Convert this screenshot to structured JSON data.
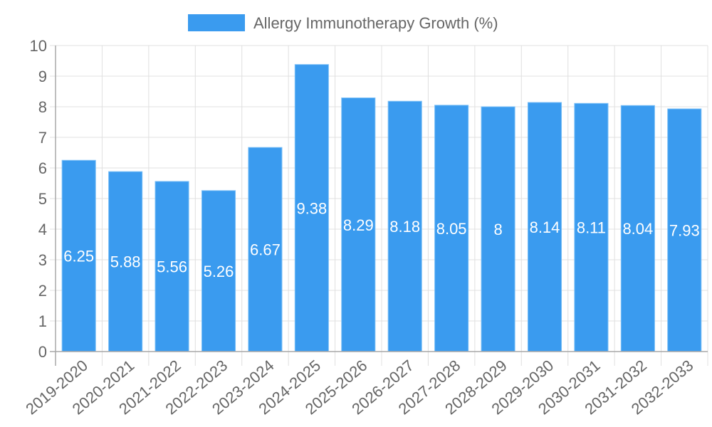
{
  "chart_data": {
    "type": "bar",
    "title": "",
    "xlabel": "",
    "ylabel": "",
    "ylim": [
      0,
      10
    ],
    "yticks": [
      0,
      1,
      2,
      3,
      4,
      5,
      6,
      7,
      8,
      9,
      10
    ],
    "grid": true,
    "legend_position": "top",
    "categories": [
      "2019-2020",
      "2020-2021",
      "2021-2022",
      "2022-2023",
      "2023-2024",
      "2024-2025",
      "2025-2026",
      "2026-2027",
      "2027-2028",
      "2028-2029",
      "2029-2030",
      "2030-2031",
      "2031-2032",
      "2032-2033"
    ],
    "series": [
      {
        "name": "Allergy Immunotherapy Growth (%)",
        "color": "#3a9bef",
        "values": [
          6.25,
          5.88,
          5.56,
          5.26,
          6.67,
          9.38,
          8.29,
          8.18,
          8.05,
          8,
          8.14,
          8.11,
          8.04,
          7.93
        ],
        "labels": [
          "6.25",
          "5.88",
          "5.56",
          "5.26",
          "6.67",
          "9.38",
          "8.29",
          "8.18",
          "8.05",
          "8",
          "8.14",
          "8.11",
          "8.04",
          "7.93"
        ]
      }
    ]
  },
  "legend": {
    "label": "Allergy Immunotherapy Growth (%)",
    "swatch_color": "#3a9bef"
  },
  "colors": {
    "bar_fill": "#3a9bef",
    "text": "#666666",
    "grid": "#e0e0e0",
    "axis": "#a8a8a8"
  }
}
